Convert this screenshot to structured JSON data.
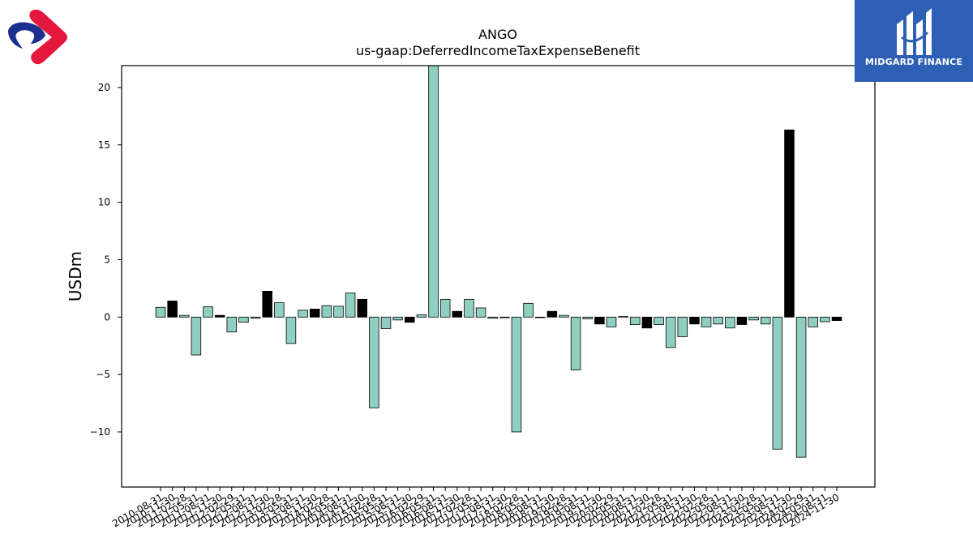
{
  "brand": {
    "right_logo_text": "MIDGARD FINANCE",
    "right_logo_bg": "#2d5fb4",
    "left_logo_colors": [
      "#e3183c",
      "#1a2f8e"
    ]
  },
  "chart_data": {
    "type": "bar",
    "title": "ANGO",
    "subtitle": "us-gaap:DeferredIncomeTaxExpenseBenefit",
    "xlabel": "",
    "ylabel": "USDm",
    "ylim": [
      -14.8,
      21.9
    ],
    "yticks": [
      -10,
      -5,
      0,
      5,
      10,
      15,
      20
    ],
    "ytick_labels": [
      "−10",
      "−5",
      "0",
      "5",
      "10",
      "15",
      "20"
    ],
    "grid": false,
    "colors": {
      "q": "#8ecfc2",
      "fy": "#000000",
      "edge": "#000000"
    },
    "categories": [
      "2010-08-31",
      "2010-11-30",
      "2011-02-28",
      "2011-05-31",
      "2011-08-31",
      "2011-11-30",
      "2012-02-29",
      "2012-05-31",
      "2012-08-31",
      "2012-11-30",
      "2013-02-28",
      "2013-05-31",
      "2013-08-31",
      "2013-11-30",
      "2014-02-28",
      "2014-05-31",
      "2014-08-31",
      "2014-11-30",
      "2015-02-28",
      "2015-05-31",
      "2015-08-31",
      "2015-11-30",
      "2016-02-29",
      "2016-05-31",
      "2016-08-31",
      "2016-11-30",
      "2017-02-28",
      "2017-05-31",
      "2017-08-31",
      "2017-11-30",
      "2018-02-28",
      "2018-05-31",
      "2018-08-31",
      "2018-11-30",
      "2019-02-28",
      "2019-05-31",
      "2019-08-31",
      "2019-11-30",
      "2020-02-29",
      "2020-05-31",
      "2020-08-31",
      "2020-11-30",
      "2021-02-28",
      "2021-05-31",
      "2021-08-31",
      "2021-11-30",
      "2022-02-28",
      "2022-05-31",
      "2022-08-31",
      "2022-11-30",
      "2023-02-28",
      "2023-05-31",
      "2023-08-31",
      "2023-11-30",
      "2024-02-29",
      "2024-05-31",
      "2024-08-31",
      "2024-11-30"
    ],
    "values": [
      0.85,
      1.4,
      0.15,
      -3.3,
      0.9,
      0.15,
      -1.3,
      -0.45,
      -0.1,
      2.25,
      1.25,
      -2.3,
      0.6,
      0.7,
      1.0,
      0.95,
      2.1,
      1.55,
      -7.9,
      -1.0,
      -0.25,
      -0.45,
      0.2,
      22.0,
      1.55,
      0.5,
      1.55,
      0.8,
      -0.1,
      -0.05,
      -10.0,
      1.2,
      -0.05,
      0.5,
      0.15,
      -4.6,
      -0.15,
      -0.6,
      -0.85,
      0.05,
      -0.65,
      -0.95,
      -0.65,
      -2.65,
      -1.7,
      -0.6,
      -0.85,
      -0.6,
      -0.95,
      -0.65,
      -0.25,
      -0.6,
      -11.5,
      16.3,
      -12.2,
      -0.85,
      -0.4,
      -0.3
    ],
    "fiscal_year_end_flags": [
      0,
      1,
      0,
      0,
      0,
      1,
      0,
      0,
      0,
      1,
      0,
      0,
      0,
      1,
      0,
      0,
      0,
      1,
      0,
      0,
      0,
      1,
      0,
      0,
      0,
      1,
      0,
      0,
      0,
      1,
      0,
      0,
      0,
      1,
      0,
      0,
      0,
      1,
      0,
      0,
      0,
      1,
      0,
      0,
      0,
      1,
      0,
      0,
      0,
      1,
      0,
      0,
      0,
      1,
      0,
      0,
      0,
      1
    ]
  }
}
